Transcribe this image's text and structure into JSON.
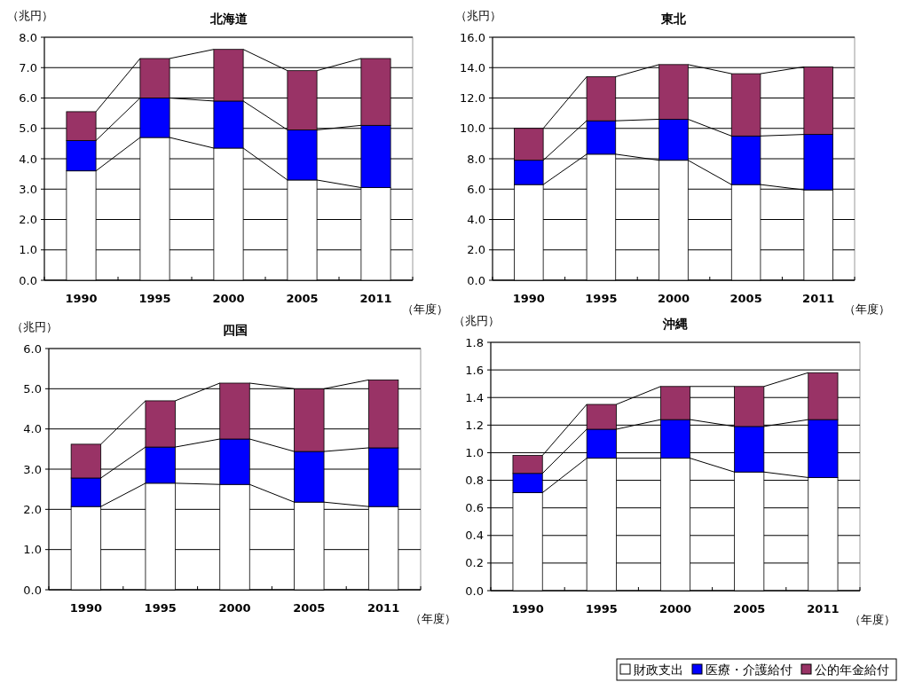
{
  "chart_data": [
    {
      "type": "bar",
      "stacked": true,
      "title": "北海道",
      "ylabel": "（兆円）",
      "xlabel": "（年度）",
      "categories": [
        "1990",
        "1995",
        "2000",
        "2005",
        "2011"
      ],
      "ylim": [
        0,
        8
      ],
      "yticks": [
        {
          "value": 0,
          "label": "0.0"
        },
        {
          "value": 1,
          "label": "1.0"
        },
        {
          "value": 2,
          "label": "2.0"
        },
        {
          "value": 3,
          "label": "3.0"
        },
        {
          "value": 4,
          "label": "4.0"
        },
        {
          "value": 5,
          "label": "5.0"
        },
        {
          "value": 6,
          "label": "6.0"
        },
        {
          "value": 7,
          "label": "7.0"
        },
        {
          "value": 8,
          "label": "8.0"
        }
      ],
      "grid": "y",
      "series": [
        {
          "color": "#ffffff",
          "values": [
            3.6,
            4.7,
            4.35,
            3.3,
            3.05
          ]
        },
        {
          "color": "#0000ff",
          "values": [
            1.0,
            1.3,
            1.55,
            1.65,
            2.05
          ]
        },
        {
          "color": "#993366",
          "values": [
            0.95,
            1.3,
            1.7,
            1.95,
            2.2
          ]
        }
      ]
    },
    {
      "type": "bar",
      "stacked": true,
      "title": "東北",
      "ylabel": "（兆円）",
      "xlabel": "（年度）",
      "categories": [
        "1990",
        "1995",
        "2000",
        "2005",
        "2011"
      ],
      "ylim": [
        0,
        16
      ],
      "yticks": [
        {
          "value": 0,
          "label": "0.0"
        },
        {
          "value": 2,
          "label": "2.0"
        },
        {
          "value": 4,
          "label": "4.0"
        },
        {
          "value": 6,
          "label": "6.0"
        },
        {
          "value": 8,
          "label": "8.0"
        },
        {
          "value": 10,
          "label": "10.0"
        },
        {
          "value": 12,
          "label": "12.0"
        },
        {
          "value": 14,
          "label": "14.0"
        },
        {
          "value": 16,
          "label": "16.0"
        }
      ],
      "grid": "y",
      "series": [
        {
          "color": "#ffffff",
          "values": [
            6.3,
            8.3,
            7.9,
            6.3,
            5.95
          ]
        },
        {
          "color": "#0000ff",
          "values": [
            1.6,
            2.2,
            2.7,
            3.2,
            3.65
          ]
        },
        {
          "color": "#993366",
          "values": [
            2.1,
            2.9,
            3.6,
            4.1,
            4.45
          ]
        }
      ]
    },
    {
      "type": "bar",
      "stacked": true,
      "title": "四国",
      "ylabel": "（兆円）",
      "xlabel": "（年度）",
      "categories": [
        "1990",
        "1995",
        "2000",
        "2005",
        "2011"
      ],
      "ylim": [
        0,
        6
      ],
      "yticks": [
        {
          "value": 0,
          "label": "0.0"
        },
        {
          "value": 1,
          "label": "1.0"
        },
        {
          "value": 2,
          "label": "2.0"
        },
        {
          "value": 3,
          "label": "3.0"
        },
        {
          "value": 4,
          "label": "4.0"
        },
        {
          "value": 5,
          "label": "5.0"
        },
        {
          "value": 6,
          "label": "6.0"
        }
      ],
      "grid": "y",
      "series": [
        {
          "color": "#ffffff",
          "values": [
            2.07,
            2.65,
            2.62,
            2.18,
            2.07
          ]
        },
        {
          "color": "#0000ff",
          "values": [
            0.71,
            0.9,
            1.13,
            1.26,
            1.46
          ]
        },
        {
          "color": "#993366",
          "values": [
            0.84,
            1.15,
            1.39,
            1.56,
            1.69
          ]
        }
      ]
    },
    {
      "type": "bar",
      "stacked": true,
      "title": "沖縄",
      "ylabel": "（兆円）",
      "xlabel": "（年度）",
      "categories": [
        "1990",
        "1995",
        "2000",
        "2005",
        "2011"
      ],
      "ylim": [
        0,
        1.8
      ],
      "yticks": [
        {
          "value": 0,
          "label": "0.0"
        },
        {
          "value": 0.2,
          "label": "0.2"
        },
        {
          "value": 0.4,
          "label": "0.4"
        },
        {
          "value": 0.6,
          "label": "0.6"
        },
        {
          "value": 0.8,
          "label": "0.8"
        },
        {
          "value": 1.0,
          "label": "1.0"
        },
        {
          "value": 1.2,
          "label": "1.2"
        },
        {
          "value": 1.4,
          "label": "1.4"
        },
        {
          "value": 1.6,
          "label": "1.6"
        },
        {
          "value": 1.8,
          "label": "1.8"
        }
      ],
      "grid": "y",
      "legend": "bottom right",
      "series": [
        {
          "name": "財政支出",
          "color": "#ffffff",
          "values": [
            0.71,
            0.96,
            0.96,
            0.86,
            0.82
          ]
        },
        {
          "name": "医療・介護給付",
          "color": "#0000ff",
          "values": [
            0.14,
            0.21,
            0.28,
            0.33,
            0.42
          ]
        },
        {
          "name": "公的年金給付",
          "color": "#993366",
          "values": [
            0.13,
            0.18,
            0.24,
            0.29,
            0.34
          ]
        }
      ]
    }
  ]
}
